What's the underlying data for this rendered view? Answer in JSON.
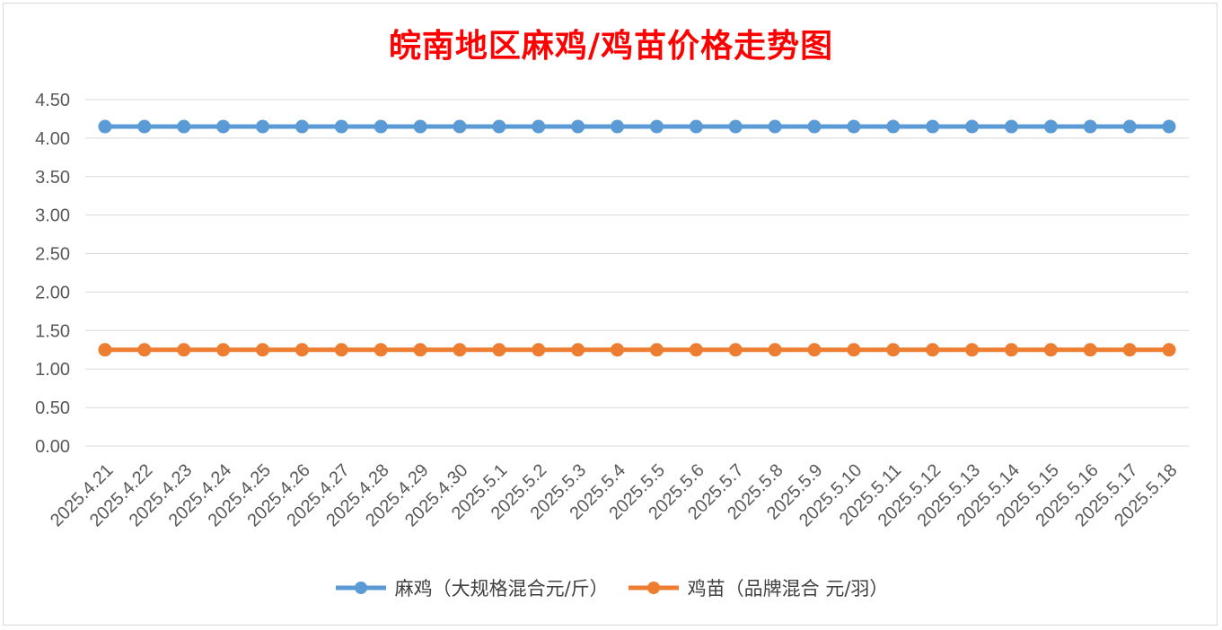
{
  "chart_data": {
    "type": "line",
    "title": "皖南地区麻鸡/鸡苗价格走势图",
    "categories": [
      "2025.4.21",
      "2025.4.22",
      "2025.4.23",
      "2025.4.24",
      "2025.4.25",
      "2025.4.26",
      "2025.4.27",
      "2025.4.28",
      "2025.4.29",
      "2025.4.30",
      "2025.5.1",
      "2025.5.2",
      "2025.5.3",
      "2025.5.4",
      "2025.5.5",
      "2025.5.6",
      "2025.5.7",
      "2025.5.8",
      "2025.5.9",
      "2025.5.10",
      "2025.5.11",
      "2025.5.12",
      "2025.5.13",
      "2025.5.14",
      "2025.5.15",
      "2025.5.16",
      "2025.5.17",
      "2025.5.18"
    ],
    "series": [
      {
        "name": "麻鸡（大规格混合元/斤）",
        "color": "#5b9bd5",
        "values": [
          4.15,
          4.15,
          4.15,
          4.15,
          4.15,
          4.15,
          4.15,
          4.15,
          4.15,
          4.15,
          4.15,
          4.15,
          4.15,
          4.15,
          4.15,
          4.15,
          4.15,
          4.15,
          4.15,
          4.15,
          4.15,
          4.15,
          4.15,
          4.15,
          4.15,
          4.15,
          4.15,
          4.15
        ]
      },
      {
        "name": "鸡苗（品牌混合 元/羽）",
        "color": "#ed7d31",
        "values": [
          1.25,
          1.25,
          1.25,
          1.25,
          1.25,
          1.25,
          1.25,
          1.25,
          1.25,
          1.25,
          1.25,
          1.25,
          1.25,
          1.25,
          1.25,
          1.25,
          1.25,
          1.25,
          1.25,
          1.25,
          1.25,
          1.25,
          1.25,
          1.25,
          1.25,
          1.25,
          1.25,
          1.25
        ]
      }
    ],
    "yticks": [
      "0.00",
      "0.50",
      "1.00",
      "1.50",
      "2.00",
      "2.50",
      "3.00",
      "3.50",
      "4.00",
      "4.50"
    ],
    "ylim": [
      0,
      4.5
    ],
    "grid": true,
    "legend_position": "bottom"
  }
}
